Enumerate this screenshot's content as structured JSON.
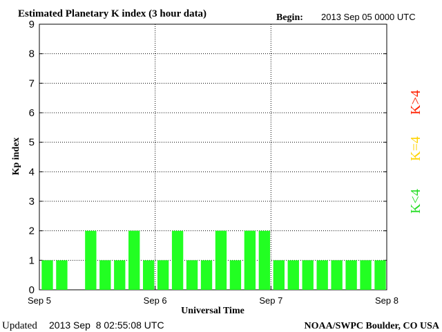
{
  "header": {
    "title": "Estimated Planetary K index (3 hour data)",
    "begin_label": "Begin:",
    "begin_value": "2013 Sep 05 0000 UTC"
  },
  "footer": {
    "updated_label": "Updated",
    "updated_value": "2013 Sep  8 02:55:08 UTC",
    "credit": "NOAA/SWPC Boulder, CO USA"
  },
  "legend": {
    "items": [
      {
        "label": "K>4",
        "color": "#ff2000"
      },
      {
        "label": "K=4",
        "color": "#ffd400"
      },
      {
        "label": "K<4",
        "color": "#22dd22"
      }
    ]
  },
  "chart_data": {
    "type": "bar",
    "title": "Estimated Planetary K index (3 hour data)",
    "xlabel": "Universal Time",
    "ylabel": "Kp index",
    "ylim": [
      0,
      9
    ],
    "yticks": [
      0,
      1,
      2,
      3,
      4,
      5,
      6,
      7,
      8,
      9
    ],
    "xticks": [
      "Sep 5",
      "Sep 6",
      "Sep 7",
      "Sep 8"
    ],
    "grid": true,
    "bar_color": "#22ff22",
    "interval_hours": 3,
    "values": [
      1,
      1,
      0,
      2,
      1,
      1,
      2,
      1,
      1,
      2,
      1,
      1,
      2,
      1,
      2,
      2,
      1,
      1,
      1,
      1,
      1,
      1,
      1,
      1
    ]
  }
}
